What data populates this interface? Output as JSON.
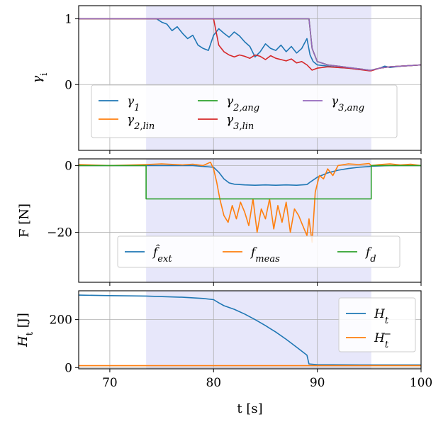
{
  "chart_data": [
    {
      "id": "gamma",
      "type": "line",
      "ylabel": "γi",
      "xlim": [
        67,
        100
      ],
      "ylim": [
        -1,
        1.2
      ],
      "yticks": [
        0,
        1
      ],
      "ytick_labels": [
        "0",
        "1"
      ],
      "xticks": [
        70,
        80,
        90,
        100
      ],
      "grid": true,
      "shaded_region": [
        73.5,
        95.2
      ],
      "legend": {
        "placement": "lower-center",
        "ncol": 3
      },
      "series": [
        {
          "name": "γ1",
          "color": "#1f77b4",
          "x": [
            67,
            73.5,
            74.5,
            75,
            75.5,
            76,
            76.5,
            77,
            77.5,
            78,
            78.5,
            79,
            79.5,
            80,
            80.5,
            81,
            81.5,
            82,
            82.5,
            83,
            83.5,
            84,
            84.5,
            85,
            85.5,
            86,
            86.5,
            87,
            87.5,
            88,
            88.5,
            89,
            89.3,
            89.6,
            90,
            91,
            92,
            93,
            94,
            95,
            95.2,
            96,
            96.5,
            97,
            98,
            99,
            100
          ],
          "y": [
            1,
            1,
            1,
            0.95,
            0.92,
            0.82,
            0.88,
            0.78,
            0.7,
            0.75,
            0.6,
            0.55,
            0.52,
            0.75,
            0.85,
            0.78,
            0.72,
            0.8,
            0.74,
            0.65,
            0.58,
            0.42,
            0.5,
            0.62,
            0.55,
            0.52,
            0.6,
            0.5,
            0.58,
            0.48,
            0.55,
            0.7,
            0.45,
            0.35,
            0.3,
            0.28,
            0.26,
            0.25,
            0.23,
            0.22,
            0.22,
            0.25,
            0.28,
            0.26,
            0.28,
            0.29,
            0.3
          ]
        },
        {
          "name": "γ2,lin",
          "color": "#ff7f0e",
          "x": [
            67,
            89.2,
            89.5,
            90,
            91,
            92,
            93,
            94,
            95,
            95.2,
            96,
            97,
            98,
            99,
            100
          ],
          "y": [
            1,
            1,
            0.55,
            0.35,
            0.3,
            0.28,
            0.26,
            0.24,
            0.22,
            0.22,
            0.25,
            0.27,
            0.28,
            0.29,
            0.3
          ]
        },
        {
          "name": "γ2,ang",
          "color": "#2ca02c",
          "x": [
            67,
            89.2,
            89.5,
            90,
            91,
            92,
            93,
            94,
            95,
            95.2,
            96,
            97,
            98,
            99,
            100
          ],
          "y": [
            1,
            1,
            0.55,
            0.35,
            0.3,
            0.28,
            0.26,
            0.24,
            0.22,
            0.22,
            0.25,
            0.27,
            0.28,
            0.29,
            0.3
          ]
        },
        {
          "name": "γ3,lin",
          "color": "#d62728",
          "x": [
            67,
            80,
            80.5,
            81,
            81.5,
            82,
            82.5,
            83,
            83.5,
            84,
            84.5,
            85,
            85.5,
            86,
            86.5,
            87,
            87.5,
            88,
            88.5,
            89,
            89.5,
            90,
            91,
            92,
            93,
            94,
            95,
            95.2,
            96,
            97,
            98,
            99,
            100
          ],
          "y": [
            1,
            1,
            0.6,
            0.5,
            0.45,
            0.42,
            0.45,
            0.43,
            0.4,
            0.45,
            0.43,
            0.38,
            0.44,
            0.4,
            0.38,
            0.36,
            0.39,
            0.33,
            0.35,
            0.3,
            0.22,
            0.25,
            0.27,
            0.26,
            0.25,
            0.23,
            0.21,
            0.21,
            0.25,
            0.27,
            0.28,
            0.29,
            0.3
          ]
        },
        {
          "name": "γ3,ang",
          "color": "#9467bd",
          "x": [
            67,
            89.2,
            89.5,
            90,
            91,
            92,
            93,
            94,
            95,
            95.2,
            96,
            97,
            98,
            99,
            100
          ],
          "y": [
            1,
            1,
            0.55,
            0.35,
            0.3,
            0.28,
            0.26,
            0.24,
            0.22,
            0.22,
            0.25,
            0.27,
            0.28,
            0.29,
            0.3
          ]
        }
      ]
    },
    {
      "id": "force",
      "type": "line",
      "ylabel": "F [N]",
      "xlim": [
        67,
        100
      ],
      "ylim": [
        -35,
        2
      ],
      "yticks": [
        0,
        -20
      ],
      "ytick_labels": [
        "0",
        "−20"
      ],
      "xticks": [
        70,
        80,
        90,
        100
      ],
      "grid": true,
      "shaded_region": [
        73.5,
        95.2
      ],
      "legend": {
        "placement": "lower-center",
        "ncol": 3
      },
      "series": [
        {
          "name": "f̂ext",
          "color": "#1f77b4",
          "x": [
            67,
            73.5,
            78,
            80,
            80.5,
            81,
            81.5,
            82,
            83,
            84,
            85,
            86,
            87,
            88,
            89,
            89.3,
            90,
            91,
            92,
            93,
            94,
            95,
            95.2,
            96,
            97,
            98,
            99,
            100
          ],
          "y": [
            0,
            0,
            0,
            -0.5,
            -2,
            -4,
            -5.2,
            -5.6,
            -5.8,
            -5.9,
            -5.8,
            -5.9,
            -5.8,
            -5.9,
            -5.7,
            -5,
            -3.5,
            -2.2,
            -1.4,
            -0.9,
            -0.5,
            -0.3,
            -0.2,
            -0.1,
            0,
            0,
            0,
            0
          ]
        },
        {
          "name": "fmeas",
          "color": "#ff7f0e",
          "x": [
            67,
            70,
            73.5,
            75,
            77,
            78,
            79,
            79.7,
            80,
            80.3,
            80.6,
            81,
            81.4,
            81.8,
            82.2,
            82.6,
            83,
            83.4,
            83.8,
            84.2,
            84.6,
            85,
            85.4,
            85.8,
            86.2,
            86.6,
            87,
            87.4,
            87.8,
            88.2,
            88.6,
            89,
            89.2,
            89.5,
            89.8,
            90.2,
            90.6,
            91,
            91.5,
            92,
            93,
            94,
            95,
            95.2,
            96,
            97,
            98,
            99,
            100
          ],
          "y": [
            0.3,
            0,
            0.3,
            0.5,
            0.2,
            0.4,
            0,
            1,
            -1,
            -5,
            -10,
            -15,
            -17,
            -12,
            -16,
            -11,
            -14,
            -18,
            -10,
            -20,
            -13,
            -16,
            -10,
            -19,
            -12,
            -17,
            -11,
            -20,
            -13,
            -15,
            -18,
            -21,
            -16,
            -23,
            -8,
            -3,
            -4,
            -1,
            -3,
            0,
            0.5,
            0.3,
            0.6,
            0,
            0.3,
            0.5,
            0.2,
            0.4,
            0
          ]
        },
        {
          "name": "fd",
          "color": "#2ca02c",
          "x": [
            67,
            73.5,
            73.5,
            95.2,
            95.2,
            100
          ],
          "y": [
            0,
            0,
            -10,
            -10,
            0,
            0
          ]
        }
      ]
    },
    {
      "id": "energy",
      "type": "line",
      "ylabel": "Ht [J]",
      "xlabel": "t [s]",
      "xlim": [
        67,
        100
      ],
      "ylim": [
        -5,
        320
      ],
      "yticks": [
        0,
        200
      ],
      "ytick_labels": [
        "0",
        "200"
      ],
      "xticks": [
        70,
        80,
        90,
        100
      ],
      "xtick_labels": [
        "70",
        "80",
        "90",
        "100"
      ],
      "grid": true,
      "shaded_region": [
        73.5,
        95.2
      ],
      "legend": {
        "placement": "lower-right",
        "ncol": 1
      },
      "series": [
        {
          "name": "Ht",
          "color": "#1f77b4",
          "x": [
            67,
            70,
            73.5,
            77,
            79,
            80,
            80.5,
            81,
            82,
            83,
            84,
            85,
            86,
            87,
            88,
            89,
            89.2,
            90,
            95,
            100
          ],
          "y": [
            302,
            300,
            298,
            293,
            288,
            283,
            270,
            258,
            243,
            223,
            200,
            175,
            148,
            118,
            85,
            52,
            15,
            12,
            11,
            11
          ]
        },
        {
          "name": "Ht−",
          "color": "#ff7f0e",
          "x": [
            67,
            100
          ],
          "y": [
            8,
            8
          ]
        }
      ]
    }
  ]
}
